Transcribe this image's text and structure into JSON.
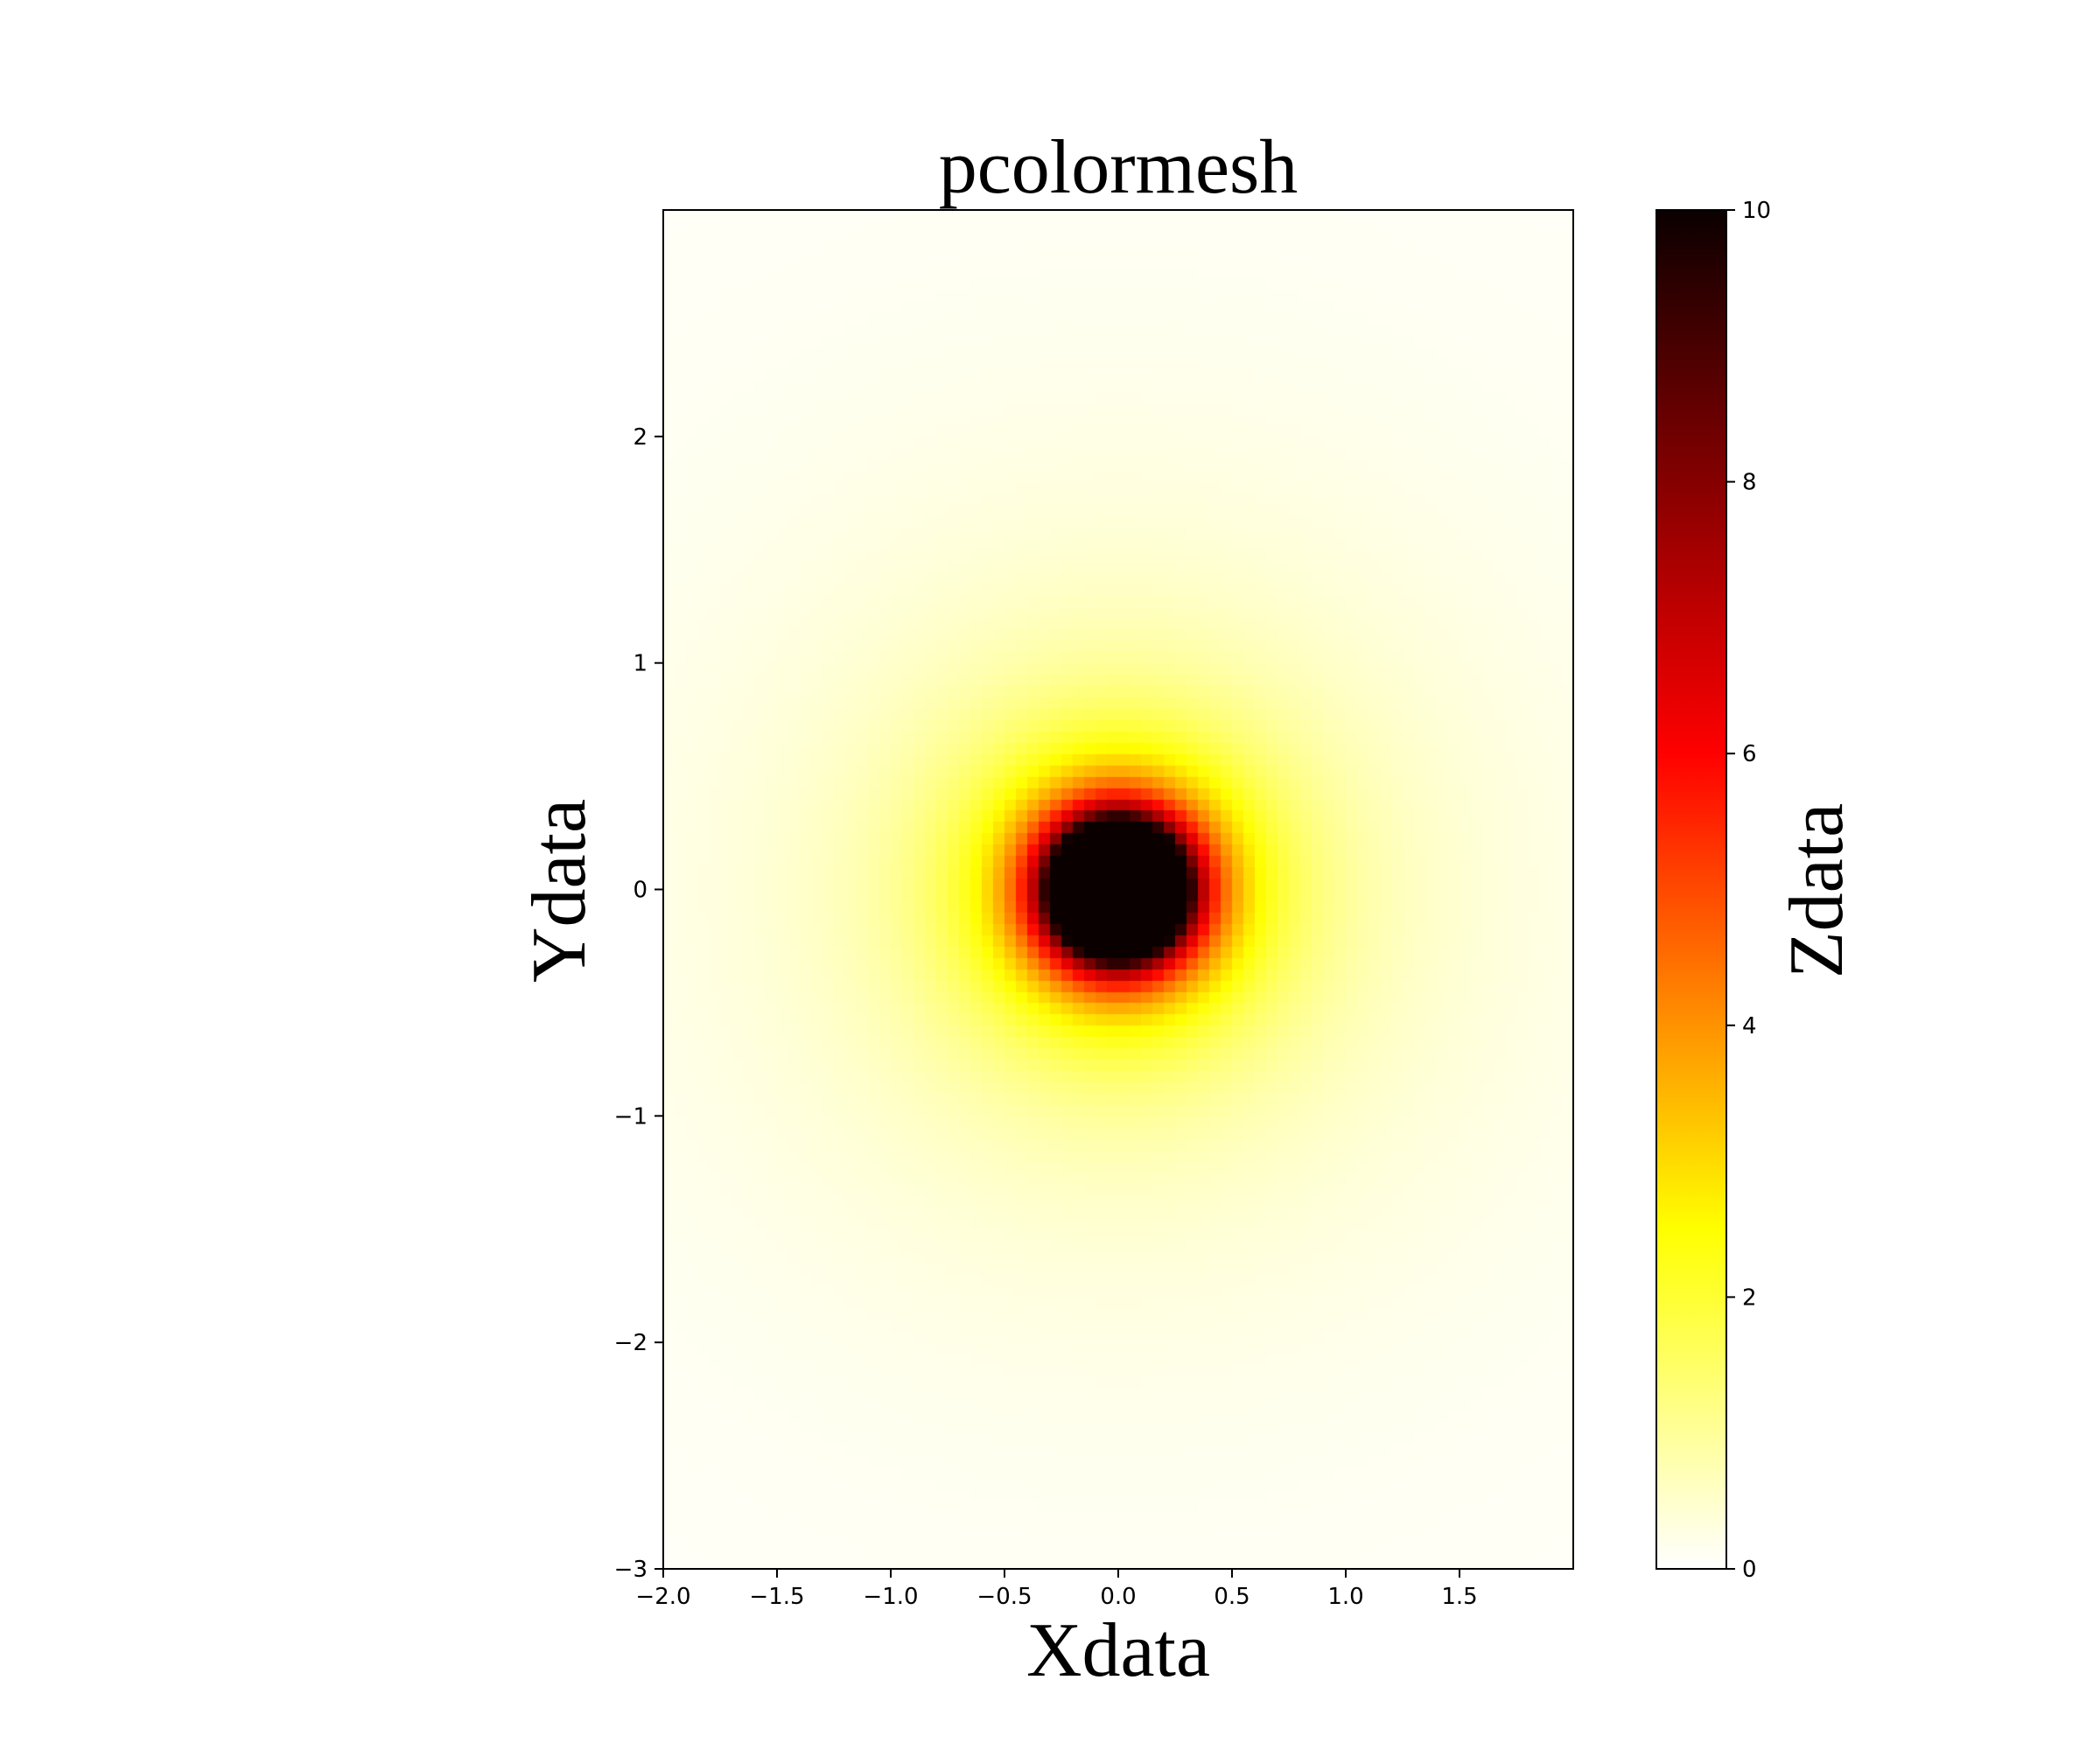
{
  "chart_data": {
    "type": "heatmap",
    "title": "pcolormesh",
    "xlabel": "Xdata",
    "ylabel": "Ydata",
    "colorbar_label": "Zdata",
    "colormap": "hot_r",
    "xlim": [
      -2.0,
      2.0
    ],
    "ylim": [
      -3.0,
      3.0
    ],
    "zlim": [
      0,
      10
    ],
    "x_ticks": [
      -2.0,
      -1.5,
      -1.0,
      -0.5,
      0.0,
      0.5,
      1.0,
      1.5
    ],
    "x_tick_labels": [
      "−2.0",
      "−1.5",
      "−1.0",
      "−0.5",
      "0.0",
      "0.5",
      "1.0",
      "1.5"
    ],
    "y_ticks": [
      -3,
      -2,
      -1,
      0,
      1,
      2
    ],
    "y_tick_labels": [
      "−3",
      "−2",
      "−1",
      "0",
      "1",
      "2"
    ],
    "colorbar_ticks": [
      0,
      2,
      4,
      6,
      8,
      10
    ],
    "colorbar_tick_labels": [
      "0",
      "2",
      "4",
      "6",
      "8",
      "10"
    ],
    "grid_step": 0.05,
    "function": "z = min(10, 1 / (x^2 + y^2)), clipped at 10",
    "center": [
      0.0,
      0.0
    ],
    "grid": false,
    "colormap_stops": [
      "#ffffff",
      "#ffff00",
      "#ff0000",
      "#0b0000"
    ]
  }
}
